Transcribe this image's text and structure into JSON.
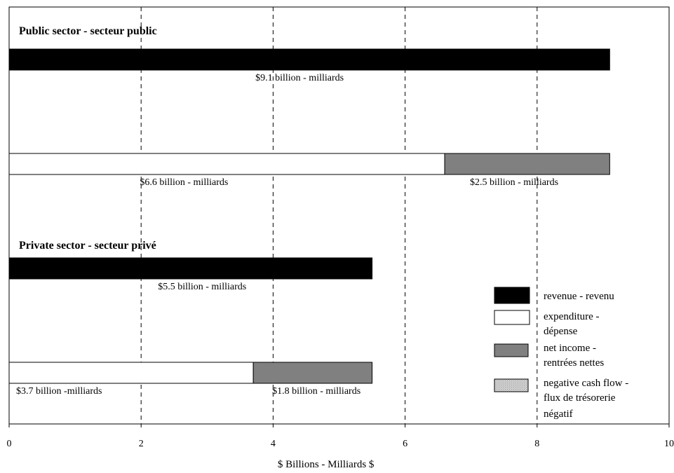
{
  "chart_data": {
    "type": "bar",
    "orientation": "horizontal",
    "stacked": true,
    "xlabel": "$ Billions - Milliards $",
    "xlim": [
      0,
      10
    ],
    "x_ticks": [
      "0",
      "2",
      "4",
      "6",
      "8",
      "10"
    ],
    "grid": "vertical dashed",
    "legend_placement": "bottom-right",
    "groups": [
      {
        "title": "Public sector - secteur public",
        "bars": [
          {
            "segments": [
              {
                "series": "revenue",
                "value": 9.1,
                "label": "$9.1 billion - milliards"
              }
            ]
          },
          {
            "segments": [
              {
                "series": "expenditure",
                "value": 6.6,
                "label": "$6.6 billion - milliards"
              },
              {
                "series": "net_income",
                "value": 2.5,
                "label": "$2.5 billion - milliards"
              }
            ]
          }
        ]
      },
      {
        "title": "Private sector - secteur privé",
        "bars": [
          {
            "segments": [
              {
                "series": "revenue",
                "value": 5.5,
                "label": "$5.5 billion - milliards"
              }
            ]
          },
          {
            "segments": [
              {
                "series": "expenditure",
                "value": 3.7,
                "label": "$3.7 billion -milliards"
              },
              {
                "series": "net_income",
                "value": 1.8,
                "label": "$1.8 billion - milliards"
              }
            ]
          }
        ]
      }
    ],
    "legend": [
      {
        "key": "revenue",
        "lines": [
          "revenue - revenu"
        ],
        "color": "#000000"
      },
      {
        "key": "expenditure",
        "lines": [
          "expenditure -",
          "dépense"
        ],
        "color": "#ffffff"
      },
      {
        "key": "net_income",
        "lines": [
          "net income -",
          "rentrées nettes"
        ],
        "color": "#808080"
      },
      {
        "key": "negative_cash_flow",
        "lines": [
          "negative cash flow -",
          "flux de trésorerie",
          "négatif"
        ],
        "color": "#c8c8c8",
        "pattern": "dotted"
      }
    ]
  }
}
